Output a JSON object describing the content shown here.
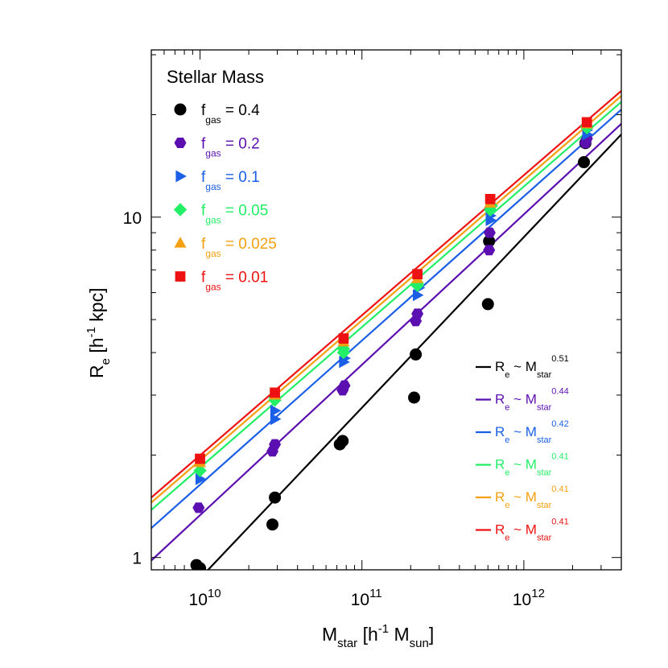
{
  "chart_data": {
    "type": "scatter",
    "scale": "log-log",
    "title": "Stellar Mass",
    "xlabel": {
      "main": "M",
      "sub": "star",
      "rest": " [h",
      "sup": "-1",
      "rest2": " M",
      "sub2": "sun",
      "end": "]"
    },
    "ylabel": {
      "main": "R",
      "sub": "e",
      "rest": " [h",
      "sup": "-1",
      "rest2": " kpc]"
    },
    "xlim": [
      5000000000.0,
      4000000000000.0
    ],
    "ylim": [
      0.92,
      31
    ],
    "xticks": [
      {
        "value": 10000000000.0,
        "base": "10",
        "exp": "10"
      },
      {
        "value": 100000000000.0,
        "base": "10",
        "exp": "11"
      },
      {
        "value": 1000000000000.0,
        "base": "10",
        "exp": "12"
      }
    ],
    "yticks": [
      {
        "value": 1,
        "label": "1"
      },
      {
        "value": 10,
        "label": "10"
      }
    ],
    "series": [
      {
        "name": "0.4",
        "color": "#000000",
        "marker": "circle",
        "slope": 0.51,
        "fit_label": {
          "r": "R",
          "rsub": "e",
          "tilde": " ~ M",
          "msub": "star",
          "exp": "0.51"
        },
        "line_points": [
          [
            6500000000.0,
            0.7
          ],
          [
            4000000000000.0,
            17.5
          ]
        ],
        "points": [
          [
            9500000000.0,
            0.95
          ],
          [
            10000000000.0,
            0.93
          ],
          [
            28000000000.0,
            1.25
          ],
          [
            29000000000.0,
            1.5
          ],
          [
            73000000000.0,
            2.15
          ],
          [
            76000000000.0,
            2.2
          ],
          [
            210000000000.0,
            2.95
          ],
          [
            215000000000.0,
            3.95
          ],
          [
            600000000000.0,
            5.55
          ],
          [
            610000000000.0,
            8.5
          ],
          [
            2350000000000.0,
            14.5
          ],
          [
            2400000000000.0,
            16.5
          ]
        ]
      },
      {
        "name": "0.2",
        "color": "#5b0fb0",
        "marker": "hexagon",
        "slope": 0.44,
        "fit_label": {
          "r": "R",
          "rsub": "e",
          "tilde": " ~ M",
          "msub": "star",
          "exp": "0.44"
        },
        "line_points": [
          [
            5000000000.0,
            0.98
          ],
          [
            4000000000000.0,
            18.8
          ]
        ],
        "points": [
          [
            9800000000.0,
            1.4
          ],
          [
            28000000000.0,
            2.05
          ],
          [
            29000000000.0,
            2.15
          ],
          [
            76000000000.0,
            3.1
          ],
          [
            78000000000.0,
            3.2
          ],
          [
            215000000000.0,
            4.95
          ],
          [
            220000000000.0,
            5.2
          ],
          [
            610000000000.0,
            8.0
          ],
          [
            615000000000.0,
            9.0
          ],
          [
            2400000000000.0,
            16.5
          ],
          [
            2450000000000.0,
            17.0
          ]
        ]
      },
      {
        "name": "0.1",
        "color": "#1a5fe6",
        "marker": "triangle-right",
        "slope": 0.42,
        "fit_label": {
          "r": "R",
          "rsub": "e",
          "tilde": " ~ M",
          "msub": "star",
          "exp": "0.42"
        },
        "line_points": [
          [
            5000000000.0,
            1.22
          ],
          [
            4000000000000.0,
            20.7
          ]
        ],
        "points": [
          [
            10000000000.0,
            1.7
          ],
          [
            29000000000.0,
            2.55
          ],
          [
            29000000000.0,
            2.7
          ],
          [
            77000000000.0,
            3.75
          ],
          [
            78000000000.0,
            3.85
          ],
          [
            220000000000.0,
            5.9
          ],
          [
            225000000000.0,
            6.2
          ],
          [
            620000000000.0,
            9.8
          ],
          [
            620000000000.0,
            10.1
          ],
          [
            2450000000000.0,
            17.5
          ],
          [
            2450000000000.0,
            18.0
          ]
        ]
      },
      {
        "name": "0.05",
        "color": "#22ee66",
        "marker": "diamond",
        "slope": 0.41,
        "fit_label": {
          "r": "R",
          "rsub": "e",
          "tilde": " ~ M",
          "msub": "star",
          "exp": "0.41"
        },
        "line_points": [
          [
            5000000000.0,
            1.38
          ],
          [
            4000000000000.0,
            21.8
          ]
        ],
        "points": [
          [
            10000000000.0,
            1.8
          ],
          [
            29000000000.0,
            2.9
          ],
          [
            29000000000.0,
            2.95
          ],
          [
            77000000000.0,
            4.0
          ],
          [
            77000000000.0,
            4.1
          ],
          [
            220000000000.0,
            6.3
          ],
          [
            220000000000.0,
            6.4
          ],
          [
            620000000000.0,
            10.5
          ],
          [
            630000000000.0,
            10.8
          ],
          [
            2450000000000.0,
            18.3
          ],
          [
            2450000000000.0,
            18.5
          ]
        ]
      },
      {
        "name": "0.025",
        "color": "#f5a010",
        "marker": "triangle-up",
        "slope": 0.41,
        "fit_label": {
          "r": "R",
          "rsub": "e",
          "tilde": " ~ M",
          "msub": "star",
          "exp": "0.41"
        },
        "line_points": [
          [
            5000000000.0,
            1.45
          ],
          [
            4000000000000.0,
            22.7
          ]
        ],
        "points": [
          [
            10000000000.0,
            1.9
          ],
          [
            29000000000.0,
            3.0
          ],
          [
            77000000000.0,
            4.3
          ],
          [
            220000000000.0,
            6.6
          ],
          [
            620000000000.0,
            11.0
          ],
          [
            2450000000000.0,
            18.8
          ]
        ]
      },
      {
        "name": "0.01",
        "color": "#ee1111",
        "marker": "square",
        "slope": 0.41,
        "fit_label": {
          "r": "R",
          "rsub": "e",
          "tilde": " ~ M",
          "msub": "star",
          "exp": "0.41"
        },
        "line_points": [
          [
            5000000000.0,
            1.5
          ],
          [
            4000000000000.0,
            23.5
          ]
        ],
        "points": [
          [
            10000000000.0,
            1.95
          ],
          [
            29000000000.0,
            3.05
          ],
          [
            77000000000.0,
            4.4
          ],
          [
            220000000000.0,
            6.8
          ],
          [
            620000000000.0,
            11.3
          ],
          [
            2450000000000.0,
            19.0
          ]
        ]
      }
    ],
    "legend": {
      "placement": "top-left",
      "label_main": "f",
      "label_sub": "gas",
      "label_sep": " = "
    },
    "fit_legend": {
      "placement": "bottom-right"
    }
  }
}
